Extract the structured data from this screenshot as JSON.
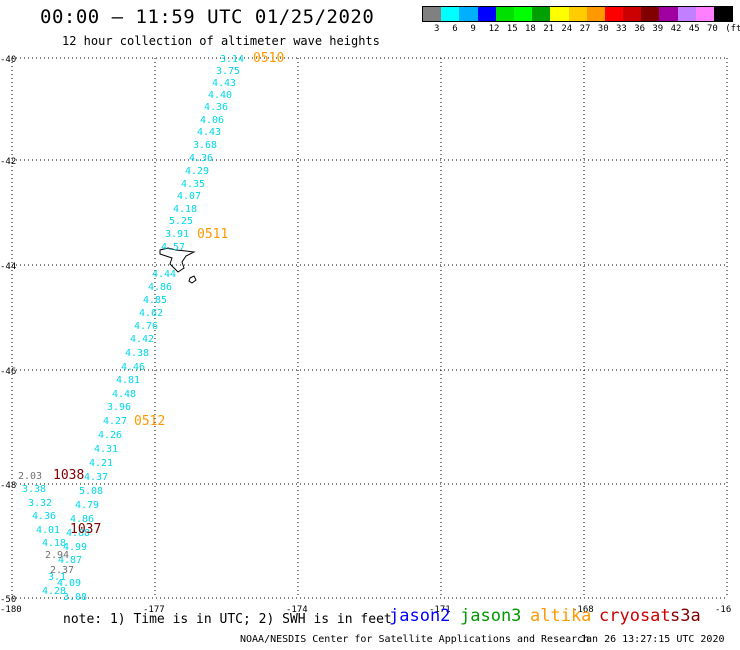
{
  "header": {
    "title": "00:00 – 11:59 UTC 01/25/2020",
    "subtitle": "12 hour collection of altimeter wave heights"
  },
  "legend": {
    "colors": [
      "#808080",
      "#00ffff",
      "#00b0ff",
      "#0000ff",
      "#00e000",
      "#00ff00",
      "#00a000",
      "#ffff00",
      "#ffcc00",
      "#ff9900",
      "#ff0000",
      "#cc0000",
      "#800000",
      "#a000a0",
      "#c080ff",
      "#ff80ff",
      "#000000"
    ],
    "labels": [
      "3",
      "6",
      "9",
      "12",
      "15",
      "18",
      "21",
      "24",
      "27",
      "30",
      "33",
      "36",
      "39",
      "42",
      "45",
      "70",
      "(ft)"
    ]
  },
  "axes": {
    "x_ticks": [
      "-180",
      "-177",
      "-174",
      "-171",
      "-168",
      "-16"
    ],
    "y_ticks": [
      "-40",
      "-42",
      "-44",
      "-46",
      "-48",
      "-50"
    ]
  },
  "track_cyan": {
    "color": "#00d8e8",
    "values": [
      "3.14",
      "3.75",
      "4.43",
      "4.40",
      "4.36",
      "4.06",
      "4.43",
      "3.68",
      "4.36",
      "4.29",
      "4.35",
      "4.07",
      "4.18",
      "5.25",
      "3.91",
      "4.57",
      "4.44",
      "4.86",
      "4.85",
      "4.62",
      "4.76",
      "4.42",
      "4.38",
      "4.46",
      "4.81",
      "4.48",
      "3.96",
      "4.27",
      "4.26",
      "4.31",
      "4.21",
      "4.37",
      "5.08",
      "4.79",
      "4.86",
      "4.88",
      "4.99",
      "4.87",
      "4.09",
      "3.08"
    ]
  },
  "track_cyan_left": {
    "values": [
      "3.38",
      "3.32",
      "4.36",
      "4.01",
      "4.18",
      "3.1",
      "4.28"
    ]
  },
  "track_gray": {
    "color": "#707070",
    "values": [
      "2.03",
      "2.94",
      "2.37"
    ]
  },
  "time_labels": [
    {
      "text": "0510",
      "color": "#ff9900"
    },
    {
      "text": "0511",
      "color": "#ff9900"
    },
    {
      "text": "0512",
      "color": "#ff9900"
    },
    {
      "text": "1038",
      "color": "#800000"
    },
    {
      "text": "1037",
      "color": "#800000"
    }
  ],
  "note": "note: 1) Time is in UTC; 2) SWH is in feet",
  "satellites": [
    {
      "name": "jason2",
      "color": "#0000ff"
    },
    {
      "name": "jason3",
      "color": "#009900"
    },
    {
      "name": "altika",
      "color": "#ff9900"
    },
    {
      "name": "cryosat",
      "color": "#cc0000"
    },
    {
      "name": "s3a",
      "color": "#800000"
    }
  ],
  "credit": "NOAA/NESDIS Center for Satellite Applications and Research",
  "timestamp": "Jan 26 13:27:15 UTC 2020"
}
